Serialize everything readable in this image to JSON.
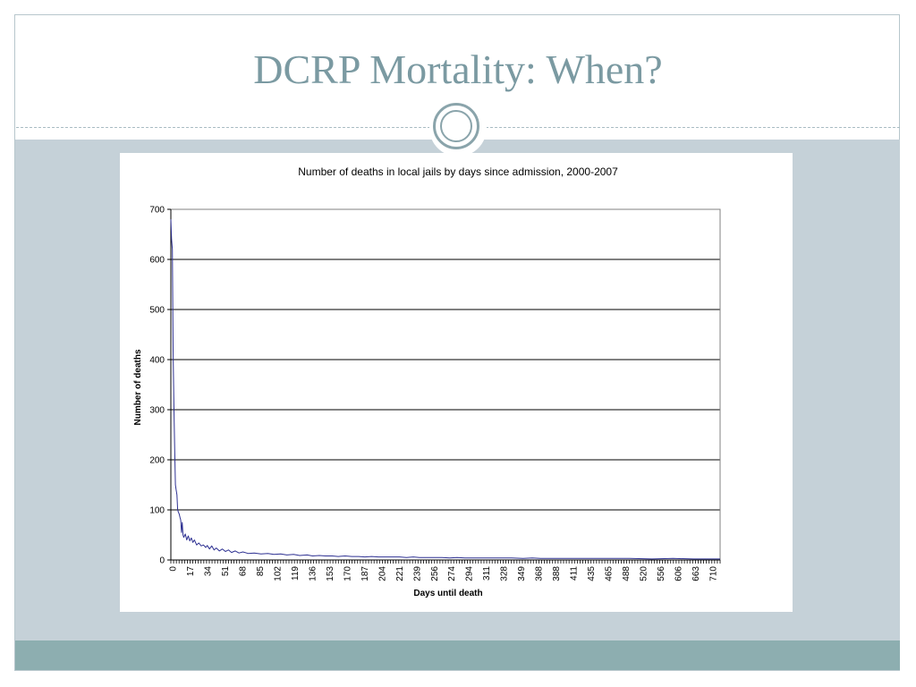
{
  "slide": {
    "title": "DCRP Mortality: When?"
  },
  "colors": {
    "title": "#7b9aa2",
    "content_background": "#c5d1d8",
    "bottom_bar": "#8daeb0",
    "series_line": "#2e3192"
  },
  "chart_data": {
    "type": "line",
    "title": "Number of deaths in local jails by days since admission, 2000-2007",
    "xlabel": "Days until death",
    "ylabel": "Number of deaths",
    "ylim": [
      0,
      700
    ],
    "yticks": [
      0,
      100,
      200,
      300,
      400,
      500,
      600,
      700
    ],
    "xticks": [
      0,
      17,
      34,
      51,
      68,
      85,
      102,
      119,
      136,
      153,
      170,
      187,
      204,
      221,
      239,
      256,
      274,
      294,
      311,
      328,
      349,
      368,
      388,
      411,
      435,
      465,
      488,
      520,
      556,
      606,
      663,
      710
    ],
    "grid": "horizontal",
    "legend": "none",
    "series": [
      {
        "color": "#2e3192",
        "x": [
          0,
          1,
          2,
          3,
          4,
          5,
          6,
          7,
          8,
          9,
          10,
          11,
          12,
          13,
          14,
          15,
          16,
          17,
          19,
          21,
          23,
          25,
          27,
          29,
          31,
          34,
          37,
          40,
          43,
          46,
          48,
          51,
          54,
          57,
          60,
          64,
          68,
          72,
          76,
          80,
          85,
          90,
          95,
          102,
          110,
          119,
          128,
          136,
          145,
          153,
          162,
          170,
          180,
          187,
          196,
          204,
          213,
          221,
          230,
          239,
          248,
          256,
          265,
          274,
          284,
          294,
          302,
          311,
          320,
          328,
          338,
          349,
          358,
          368,
          378,
          388,
          400,
          411,
          423,
          435,
          450,
          465,
          477,
          488,
          505,
          520,
          540,
          556,
          580,
          606,
          635,
          663,
          690,
          710,
          725
        ],
        "values": [
          680,
          640,
          620,
          420,
          310,
          230,
          150,
          140,
          130,
          100,
          95,
          92,
          85,
          80,
          55,
          75,
          50,
          45,
          52,
          40,
          48,
          38,
          44,
          35,
          40,
          30,
          34,
          28,
          30,
          25,
          29,
          22,
          28,
          20,
          24,
          18,
          22,
          17,
          20,
          15,
          18,
          14,
          16,
          13,
          14,
          12,
          13,
          11,
          12,
          10,
          11,
          9,
          10,
          8,
          9,
          8,
          8,
          7,
          8,
          7,
          7,
          6,
          7,
          6,
          6,
          6,
          6,
          5,
          6,
          5,
          5,
          5,
          5,
          4,
          5,
          4,
          4,
          4,
          4,
          4,
          4,
          3,
          4,
          3,
          3,
          3,
          3,
          3,
          3,
          3,
          2,
          3,
          2,
          2,
          2
        ]
      }
    ]
  }
}
